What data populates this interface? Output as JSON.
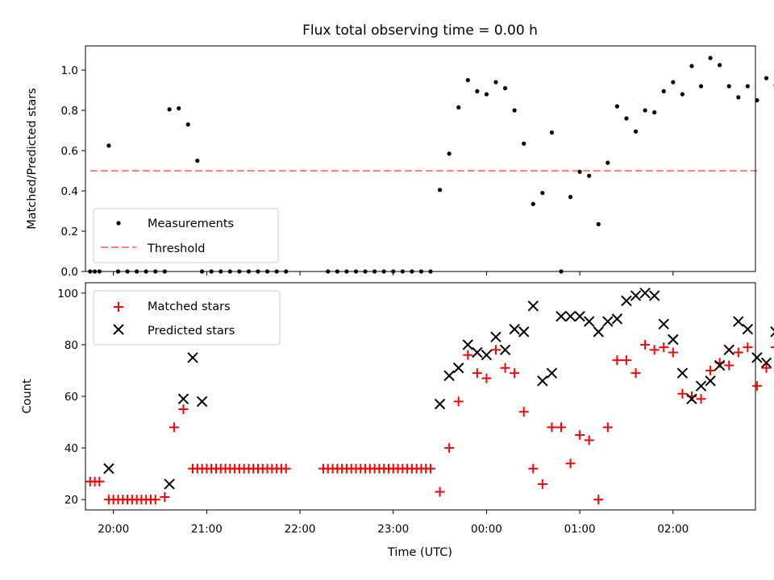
{
  "chart_data": [
    {
      "type": "scatter",
      "title": "Flux total observing time = 0.00 h",
      "xlabel": "",
      "ylabel": "Matched/Predicted stars",
      "xlim": [
        "19:42",
        "02:53"
      ],
      "ylim": [
        0,
        1.12
      ],
      "y_ticks": [
        "0.0",
        "0.2",
        "0.4",
        "0.6",
        "0.8",
        "1.0"
      ],
      "legend_position": "lower-left",
      "legend": [
        "Measurements",
        "Threshold"
      ],
      "series": [
        {
          "name": "Measurements",
          "color": "#000000",
          "marker": "dot",
          "points": [
            [
              "19:45",
              0
            ],
            [
              "19:48",
              0
            ],
            [
              "19:51",
              0
            ],
            [
              "19:57",
              0.625
            ],
            [
              "20:03",
              0
            ],
            [
              "20:09",
              0
            ],
            [
              "20:15",
              0
            ],
            [
              "20:21",
              0
            ],
            [
              "20:27",
              0
            ],
            [
              "20:33",
              0
            ],
            [
              "20:36",
              0.805
            ],
            [
              "20:42",
              0.81
            ],
            [
              "20:48",
              0.73
            ],
            [
              "20:54",
              0.55
            ],
            [
              "20:57",
              0
            ],
            [
              "21:03",
              0
            ],
            [
              "21:09",
              0
            ],
            [
              "21:15",
              0
            ],
            [
              "21:21",
              0
            ],
            [
              "21:27",
              0
            ],
            [
              "21:33",
              0
            ],
            [
              "21:39",
              0
            ],
            [
              "21:45",
              0
            ],
            [
              "21:51",
              0
            ],
            [
              "22:18",
              0
            ],
            [
              "22:24",
              0
            ],
            [
              "22:30",
              0
            ],
            [
              "22:36",
              0
            ],
            [
              "22:42",
              0
            ],
            [
              "22:48",
              0
            ],
            [
              "22:54",
              0
            ],
            [
              "23:00",
              0
            ],
            [
              "23:06",
              0
            ],
            [
              "23:12",
              0
            ],
            [
              "23:18",
              0
            ],
            [
              "23:24",
              0
            ],
            [
              "23:30",
              0.405
            ],
            [
              "23:36",
              0.585
            ],
            [
              "23:42",
              0.815
            ],
            [
              "23:48",
              0.95
            ],
            [
              "23:54",
              0.895
            ],
            [
              "00:00",
              0.88
            ],
            [
              "00:06",
              0.94
            ],
            [
              "00:12",
              0.91
            ],
            [
              "00:18",
              0.8
            ],
            [
              "00:24",
              0.635
            ],
            [
              "00:30",
              0.335
            ],
            [
              "00:36",
              0.39
            ],
            [
              "00:42",
              0.69
            ],
            [
              "00:48",
              0
            ],
            [
              "00:54",
              0.37
            ],
            [
              "01:00",
              0.495
            ],
            [
              "01:06",
              0.475
            ],
            [
              "01:12",
              0.235
            ],
            [
              "01:18",
              0.54
            ],
            [
              "01:24",
              0.82
            ],
            [
              "01:30",
              0.76
            ],
            [
              "01:36",
              0.695
            ],
            [
              "01:42",
              0.8
            ],
            [
              "01:48",
              0.79
            ],
            [
              "01:54",
              0.895
            ],
            [
              "02:00",
              0.94
            ],
            [
              "02:06",
              0.88
            ],
            [
              "02:12",
              1.02
            ],
            [
              "02:18",
              0.92
            ],
            [
              "02:24",
              1.06
            ],
            [
              "02:30",
              1.025
            ],
            [
              "02:36",
              0.92
            ],
            [
              "02:42",
              0.865
            ],
            [
              "02:48",
              0.92
            ],
            [
              "02:54",
              0.85
            ],
            [
              "03:00",
              0.96
            ],
            [
              "03:06",
              0.925
            ]
          ]
        },
        {
          "name": "Threshold",
          "color": "#ff8080",
          "style": "dashed",
          "points": [
            [
              "19:45",
              0.5
            ],
            [
              "02:54",
              0.5
            ]
          ]
        }
      ]
    },
    {
      "type": "scatter",
      "title": "",
      "xlabel": "Time (UTC)",
      "ylabel": "Count",
      "xlim": [
        "19:42",
        "02:53"
      ],
      "ylim": [
        16,
        104
      ],
      "x_ticks": [
        "20:00",
        "21:00",
        "22:00",
        "23:00",
        "00:00",
        "01:00",
        "02:00"
      ],
      "y_ticks": [
        "20",
        "40",
        "60",
        "80",
        "100"
      ],
      "legend_position": "upper-left",
      "legend": [
        "Matched stars",
        "Predicted stars"
      ],
      "series": [
        {
          "name": "Matched stars",
          "color": "#ff0000",
          "marker": "plus",
          "points": [
            [
              "19:45",
              27
            ],
            [
              "19:48",
              27
            ],
            [
              "19:51",
              27
            ],
            [
              "19:57",
              20
            ],
            [
              "20:00",
              20
            ],
            [
              "20:03",
              20
            ],
            [
              "20:06",
              20
            ],
            [
              "20:09",
              20
            ],
            [
              "20:12",
              20
            ],
            [
              "20:15",
              20
            ],
            [
              "20:18",
              20
            ],
            [
              "20:21",
              20
            ],
            [
              "20:24",
              20
            ],
            [
              "20:27",
              20
            ],
            [
              "20:33",
              21
            ],
            [
              "20:39",
              48
            ],
            [
              "20:45",
              55
            ],
            [
              "20:51",
              32
            ],
            [
              "20:54",
              32
            ],
            [
              "20:57",
              32
            ],
            [
              "21:00",
              32
            ],
            [
              "21:03",
              32
            ],
            [
              "21:06",
              32
            ],
            [
              "21:09",
              32
            ],
            [
              "21:12",
              32
            ],
            [
              "21:15",
              32
            ],
            [
              "21:18",
              32
            ],
            [
              "21:21",
              32
            ],
            [
              "21:24",
              32
            ],
            [
              "21:27",
              32
            ],
            [
              "21:30",
              32
            ],
            [
              "21:33",
              32
            ],
            [
              "21:36",
              32
            ],
            [
              "21:39",
              32
            ],
            [
              "21:42",
              32
            ],
            [
              "21:45",
              32
            ],
            [
              "21:48",
              32
            ],
            [
              "21:51",
              32
            ],
            [
              "22:15",
              32
            ],
            [
              "22:18",
              32
            ],
            [
              "22:21",
              32
            ],
            [
              "22:24",
              32
            ],
            [
              "22:27",
              32
            ],
            [
              "22:30",
              32
            ],
            [
              "22:33",
              32
            ],
            [
              "22:36",
              32
            ],
            [
              "22:39",
              32
            ],
            [
              "22:42",
              32
            ],
            [
              "22:45",
              32
            ],
            [
              "22:48",
              32
            ],
            [
              "22:51",
              32
            ],
            [
              "22:54",
              32
            ],
            [
              "22:57",
              32
            ],
            [
              "23:00",
              32
            ],
            [
              "23:03",
              32
            ],
            [
              "23:06",
              32
            ],
            [
              "23:09",
              32
            ],
            [
              "23:12",
              32
            ],
            [
              "23:15",
              32
            ],
            [
              "23:18",
              32
            ],
            [
              "23:21",
              32
            ],
            [
              "23:24",
              32
            ],
            [
              "23:30",
              23
            ],
            [
              "23:36",
              40
            ],
            [
              "23:42",
              58
            ],
            [
              "23:48",
              76
            ],
            [
              "23:54",
              69
            ],
            [
              "00:00",
              67
            ],
            [
              "00:06",
              78
            ],
            [
              "00:12",
              71
            ],
            [
              "00:18",
              69
            ],
            [
              "00:24",
              54
            ],
            [
              "00:30",
              32
            ],
            [
              "00:36",
              26
            ],
            [
              "00:42",
              48
            ],
            [
              "00:48",
              48
            ],
            [
              "00:54",
              34
            ],
            [
              "01:00",
              45
            ],
            [
              "01:06",
              43
            ],
            [
              "01:12",
              20
            ],
            [
              "01:18",
              48
            ],
            [
              "01:24",
              74
            ],
            [
              "01:30",
              74
            ],
            [
              "01:36",
              69
            ],
            [
              "01:42",
              80
            ],
            [
              "01:48",
              78
            ],
            [
              "01:54",
              79
            ],
            [
              "02:00",
              77
            ],
            [
              "02:06",
              61
            ],
            [
              "02:12",
              60
            ],
            [
              "02:18",
              59
            ],
            [
              "02:24",
              70
            ],
            [
              "02:30",
              73
            ],
            [
              "02:36",
              72
            ],
            [
              "02:42",
              77
            ],
            [
              "02:48",
              79
            ],
            [
              "02:54",
              64
            ],
            [
              "03:00",
              71
            ],
            [
              "03:06",
              79
            ]
          ]
        },
        {
          "name": "Predicted stars",
          "color": "#000000",
          "marker": "x",
          "points": [
            [
              "19:57",
              32
            ],
            [
              "20:36",
              26
            ],
            [
              "20:45",
              59
            ],
            [
              "20:51",
              75
            ],
            [
              "20:57",
              58
            ],
            [
              "23:30",
              57
            ],
            [
              "23:36",
              68
            ],
            [
              "23:42",
              71
            ],
            [
              "23:48",
              80
            ],
            [
              "23:54",
              77
            ],
            [
              "00:00",
              76
            ],
            [
              "00:06",
              83
            ],
            [
              "00:12",
              78
            ],
            [
              "00:18",
              86
            ],
            [
              "00:24",
              85
            ],
            [
              "00:30",
              95
            ],
            [
              "00:36",
              66
            ],
            [
              "00:42",
              69
            ],
            [
              "00:48",
              91
            ],
            [
              "00:54",
              91
            ],
            [
              "01:00",
              91
            ],
            [
              "01:06",
              89
            ],
            [
              "01:12",
              85
            ],
            [
              "01:18",
              89
            ],
            [
              "01:24",
              90
            ],
            [
              "01:30",
              97
            ],
            [
              "01:36",
              99
            ],
            [
              "01:42",
              100
            ],
            [
              "01:48",
              99
            ],
            [
              "01:54",
              88
            ],
            [
              "02:00",
              82
            ],
            [
              "02:06",
              69
            ],
            [
              "02:12",
              59
            ],
            [
              "02:18",
              64
            ],
            [
              "02:24",
              66
            ],
            [
              "02:30",
              72
            ],
            [
              "02:36",
              78
            ],
            [
              "02:42",
              89
            ],
            [
              "02:48",
              86
            ],
            [
              "02:54",
              75
            ],
            [
              "03:00",
              73
            ],
            [
              "03:06",
              85
            ]
          ]
        }
      ]
    }
  ]
}
